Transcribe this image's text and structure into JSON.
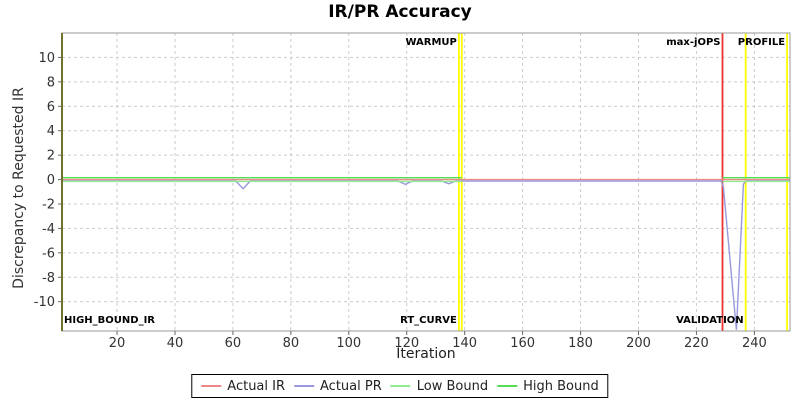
{
  "chart_data": {
    "type": "line",
    "title": "IR/PR Accuracy",
    "xlabel": "Iteration",
    "ylabel": "Discrepancy to Requested IR",
    "xlim": [
      1,
      252.3
    ],
    "ylim": [
      -12.4,
      12
    ],
    "xticks": [
      20,
      40,
      60,
      80,
      100,
      120,
      140,
      160,
      180,
      200,
      220,
      240
    ],
    "yticks": [
      -10,
      -8,
      -6,
      -4,
      -2,
      0,
      2,
      4,
      6,
      8,
      10
    ],
    "grid": true,
    "legend_position": "bottom-center",
    "series": [
      {
        "name": "Actual IR",
        "color": "#ee8888",
        "segments": [
          [
            [
              1,
              0
            ],
            [
              252.3,
              0
            ]
          ]
        ]
      },
      {
        "name": "Actual PR",
        "color": "#9999dd",
        "segments": [
          [
            [
              1,
              -0.12
            ],
            [
              61,
              -0.12
            ],
            [
              63.5,
              -0.75
            ],
            [
              66,
              -0.12
            ],
            [
              117,
              -0.12
            ],
            [
              119.5,
              -0.4
            ],
            [
              122,
              -0.12
            ],
            [
              132,
              -0.12
            ],
            [
              134.5,
              -0.35
            ],
            [
              137,
              -0.12
            ],
            [
              228.5,
              -0.12
            ],
            [
              229.3,
              -0.6
            ],
            [
              233.8,
              -12.3
            ],
            [
              236.2,
              -0.4
            ],
            [
              237,
              -0.12
            ],
            [
              252.3,
              -0.12
            ]
          ]
        ]
      },
      {
        "name": "Low Bound",
        "color": "#90ee90",
        "segments": [
          [
            [
              1,
              -0.15
            ],
            [
              139,
              -0.15
            ]
          ],
          [
            [
              229,
              -0.15
            ],
            [
              252.3,
              -0.15
            ]
          ]
        ]
      },
      {
        "name": "High Bound",
        "color": "#55dd55",
        "segments": [
          [
            [
              1,
              0.15
            ],
            [
              139,
              0.15
            ]
          ],
          [
            [
              229,
              0.15
            ],
            [
              252.3,
              0.15
            ]
          ]
        ]
      }
    ],
    "phase_lines": [
      {
        "x": 138,
        "color": "#ffff00"
      },
      {
        "x": 139,
        "color": "#ffff00"
      },
      {
        "x": 229,
        "color": "#ee3333"
      },
      {
        "x": 237,
        "color": "#ffff00"
      },
      {
        "x": 251.3,
        "color": "#ffff00"
      }
    ],
    "phase_labels": [
      {
        "text": "WARMUP",
        "x": 138,
        "ha": "right",
        "va": "top"
      },
      {
        "text": "max-jOPS",
        "x": 229,
        "ha": "right",
        "va": "top"
      },
      {
        "text": "PROFILE",
        "x": 251.3,
        "ha": "right",
        "va": "top"
      },
      {
        "text": "HIGH_BOUND_IR",
        "x": 1,
        "ha": "left",
        "va": "bottom"
      },
      {
        "text": "RT_CURVE",
        "x": 138,
        "ha": "right",
        "va": "bottom"
      },
      {
        "text": "VALIDATION",
        "x": 237,
        "ha": "right",
        "va": "bottom"
      }
    ],
    "palette": {
      "plot_border": "#999999",
      "y_axis_line": "#72722d",
      "grid": "#cccccc",
      "tick": "#666666",
      "tick_label": "#333333",
      "phase_label": "#000000",
      "background": "#ffffff"
    }
  }
}
